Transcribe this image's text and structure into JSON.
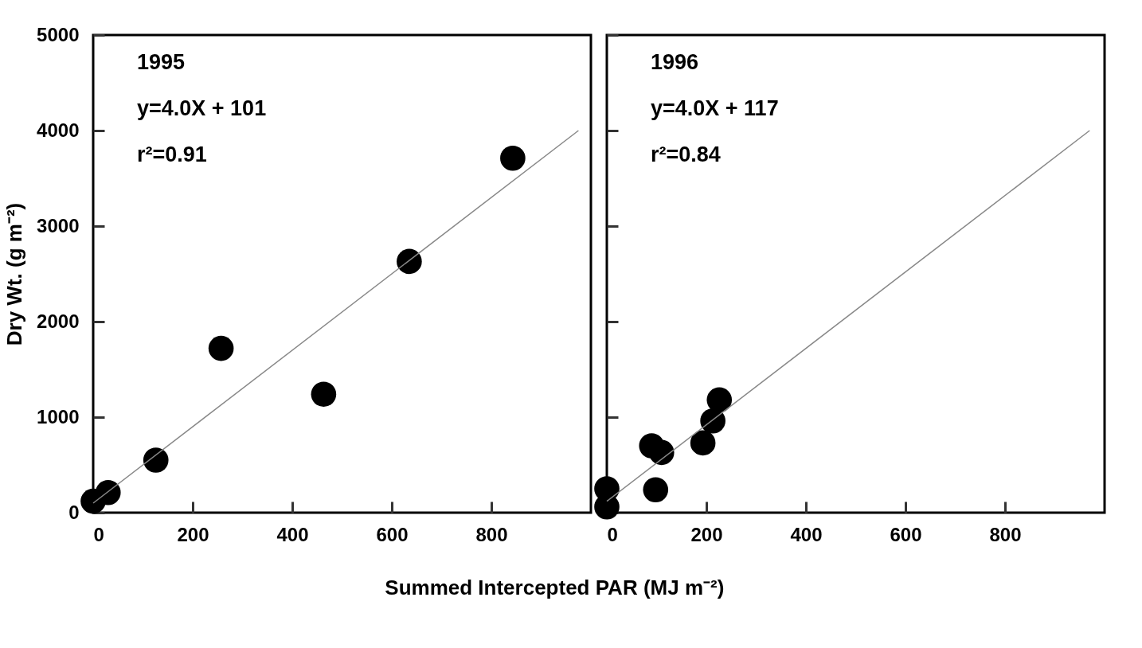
{
  "chart_data": [
    {
      "type": "scatter",
      "ylabel": "Dry Wt. (g m⁻²)",
      "xlabel": "Summed Intercepted PAR (MJ m⁻²)",
      "xlim": [
        0,
        1000
      ],
      "xticks": [
        0,
        200,
        400,
        600,
        800
      ],
      "ylim": [
        0,
        5000
      ],
      "yticks": [
        0,
        1000,
        2000,
        3000,
        4000,
        5000
      ],
      "annotations": [
        "1995",
        "y=4.0X + 101",
        "r²=0.91"
      ],
      "series": [
        {
          "marker": "circle",
          "color": "#000000",
          "x": [
            0,
            30,
            126,
            257,
            463,
            635,
            843
          ],
          "values": [
            120,
            210,
            550,
            1720,
            1240,
            2630,
            3710
          ]
        },
        {
          "type": "line",
          "color": "#888888",
          "x": [
            0,
            975
          ],
          "values": [
            100,
            4000
          ]
        }
      ]
    },
    {
      "type": "scatter",
      "xlim": [
        0,
        1000
      ],
      "xticks": [
        0,
        200,
        400,
        600,
        800
      ],
      "ylim": [
        0,
        5000
      ],
      "yticks": [
        0,
        1000,
        2000,
        3000,
        4000,
        5000
      ],
      "tick_labels": "x",
      "annotations": [
        "1996",
        "y=4.0X + 117",
        "r²=0.84"
      ],
      "series": [
        {
          "marker": "circle",
          "color": "#000000",
          "x": [
            0,
            0,
            90,
            110,
            98,
            193,
            213,
            226
          ],
          "values": [
            60,
            250,
            700,
            630,
            240,
            730,
            960,
            1180
          ]
        },
        {
          "type": "line",
          "color": "#888888",
          "x": [
            0,
            970
          ],
          "values": [
            120,
            4000
          ]
        }
      ]
    }
  ]
}
